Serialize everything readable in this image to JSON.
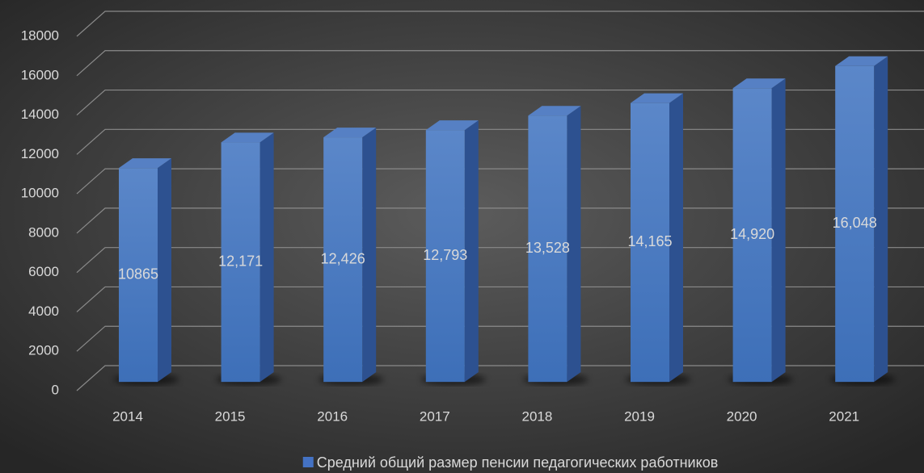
{
  "chart_data": {
    "type": "bar3d",
    "categories": [
      "2014",
      "2015",
      "2016",
      "2017",
      "2018",
      "2019",
      "2020",
      "2021"
    ],
    "series": [
      {
        "name": "Средний общий размер пенсии педагогических работников",
        "color": "#4472c4",
        "values": [
          10865,
          12171,
          12426,
          12793,
          13528,
          14165,
          14920,
          16048
        ],
        "value_labels": [
          "10865",
          "12,171",
          "12,426",
          "12,793",
          "13,528",
          "14,165",
          "14,920",
          "16,048"
        ]
      }
    ],
    "ylim": [
      0,
      18000
    ],
    "yticks": [
      0,
      2000,
      4000,
      6000,
      8000,
      10000,
      12000,
      14000,
      16000,
      18000
    ],
    "grid": true,
    "legend": "bottom"
  }
}
